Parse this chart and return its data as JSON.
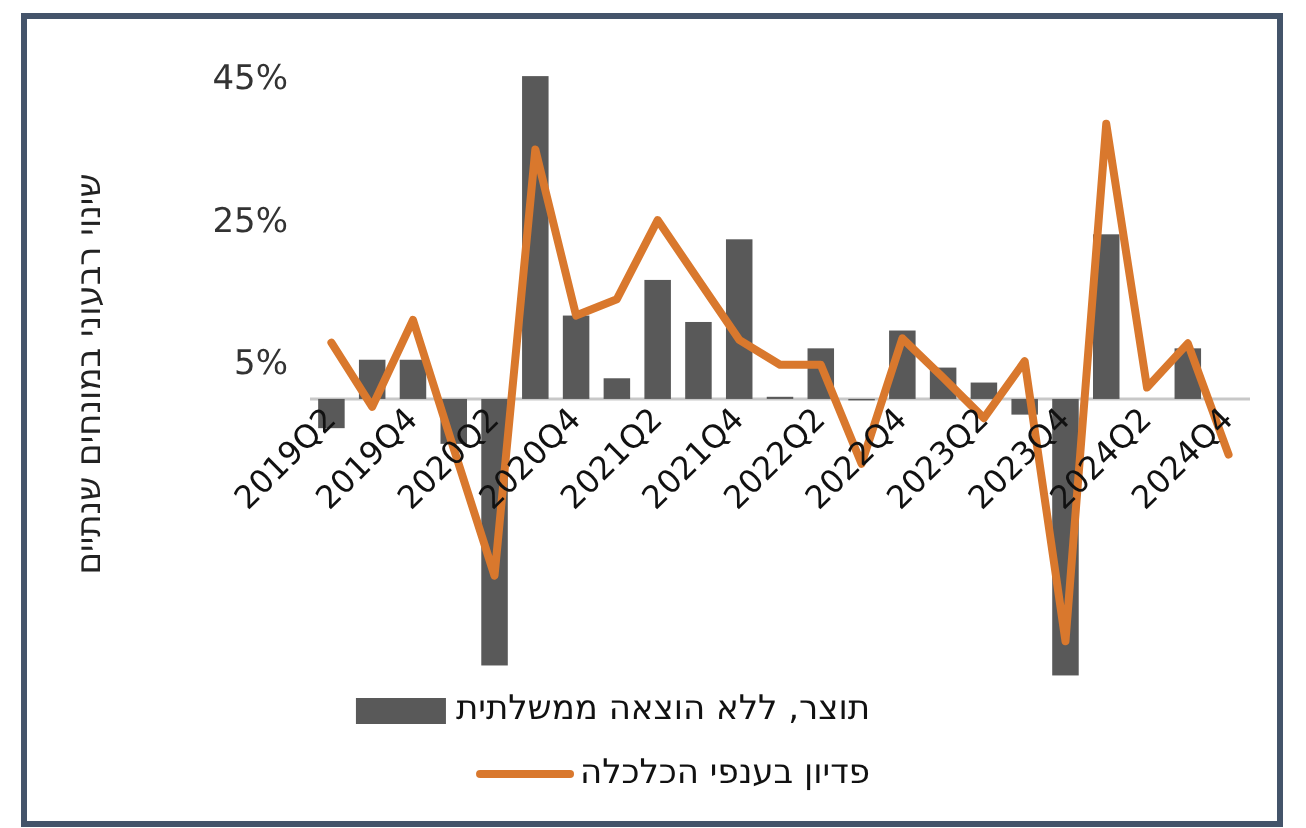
{
  "chart_data": {
    "type": "bar",
    "ylabel": "שינוי רבעוני במונחים שנתיים",
    "categories": [
      "2019Q2",
      null,
      "2019Q4",
      null,
      "2020Q2",
      null,
      "2020Q4",
      null,
      "2021Q2",
      null,
      "2021Q4",
      null,
      "2022Q2",
      null,
      "2022Q4",
      null,
      "2023Q2",
      null,
      "2023Q4",
      null,
      "2024Q2",
      null,
      "2024Q4"
    ],
    "series": [
      {
        "name": "תוצר, ללא הוצאה ממשלתית",
        "color": "#595959",
        "values": [
          -4.1,
          5.5,
          5.5,
          -6.3,
          -37.4,
          45.3,
          11.7,
          2.9,
          16.7,
          10.8,
          22.4,
          0.3,
          7.1,
          -0.2,
          9.6,
          4.4,
          2.3,
          -2.2,
          -38.8,
          23.1,
          0,
          7.1,
          0
        ]
      },
      {
        "name": "פדיון בענפי הכלכלה",
        "type": "line",
        "color": "#d9782d",
        "values": [
          7.9,
          -1.1,
          11.1,
          -7,
          -24.8,
          35,
          11.7,
          14,
          25.1,
          16.7,
          8.3,
          4.8,
          4.8,
          -9.1,
          8.5,
          3,
          -2.7,
          5.3,
          -34,
          38.6,
          1.6,
          7.8,
          -7.8
        ]
      }
    ],
    "ylim": [
      -40,
      47
    ],
    "yticks": [
      {
        "value": 45,
        "label": "45%"
      },
      {
        "value": 25,
        "label": "25%"
      },
      {
        "value": 5,
        "label": "5%"
      }
    ],
    "legend": "bottom"
  }
}
